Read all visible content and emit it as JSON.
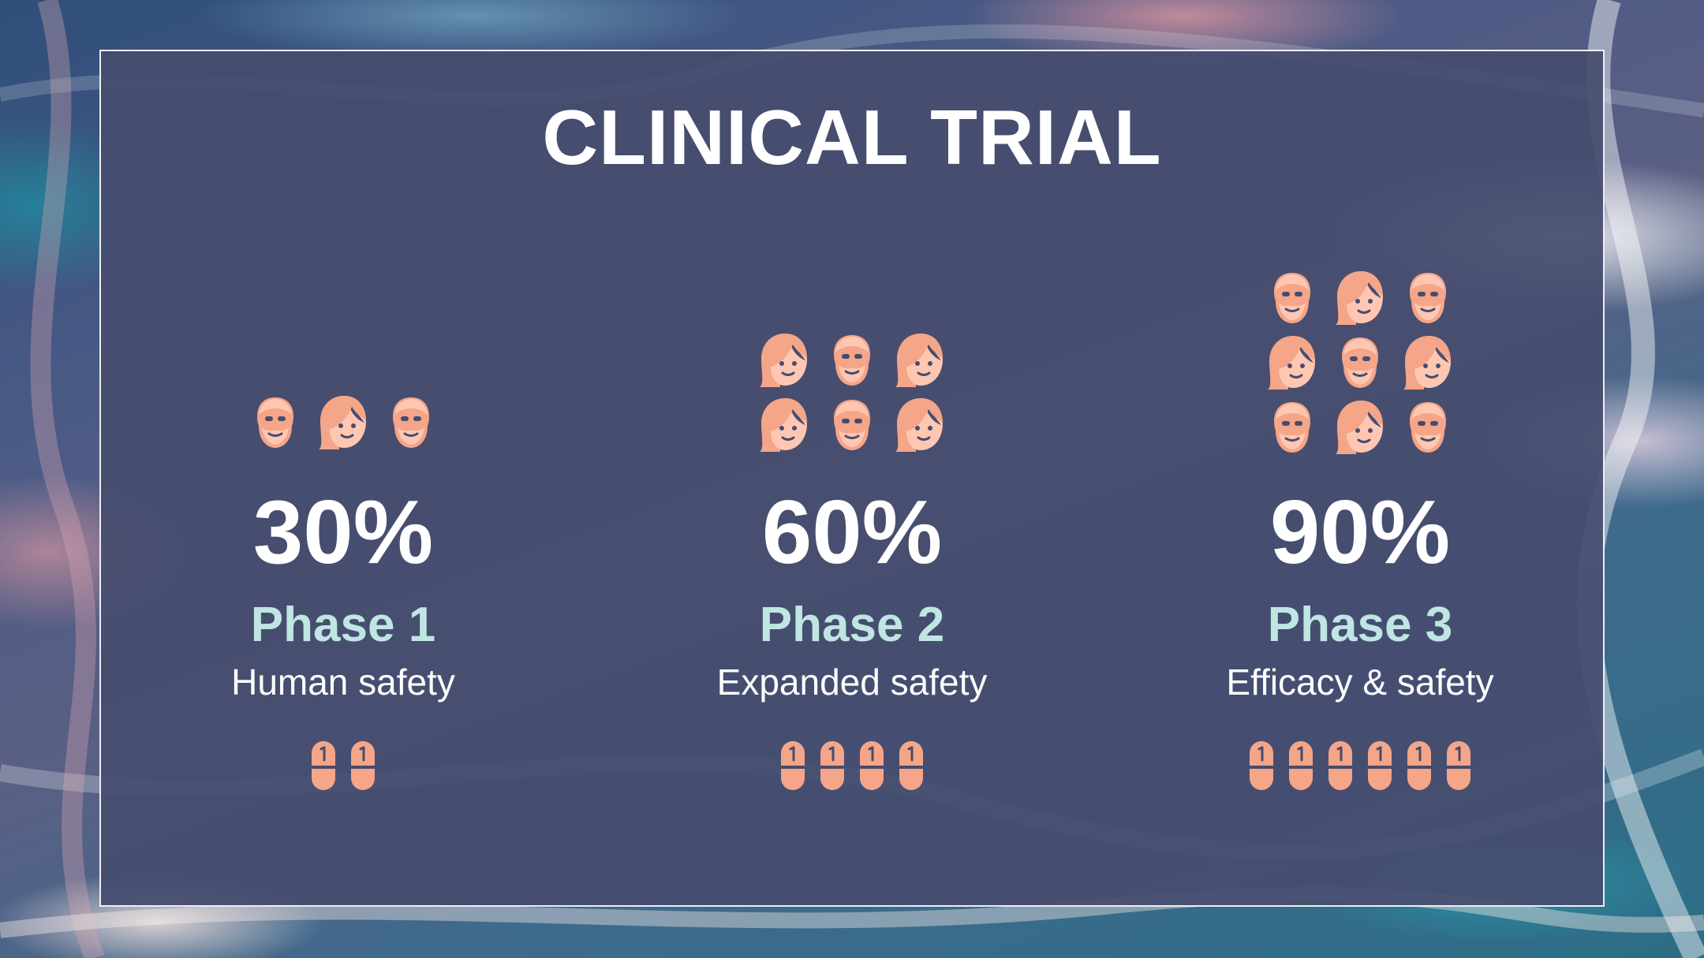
{
  "title": "CLINICAL TRIAL",
  "colors": {
    "panel": "#464c6e",
    "accent_icon": "#f5a588",
    "phase_text": "#bfe6e2",
    "text": "#ffffff"
  },
  "phases": [
    {
      "percent": "30%",
      "phase": "Phase 1",
      "description": "Human safety",
      "people_rows": [
        [
          "man",
          "woman",
          "man"
        ]
      ],
      "pill_count": 2
    },
    {
      "percent": "60%",
      "phase": "Phase 2",
      "description": "Expanded safety",
      "people_rows": [
        [
          "woman",
          "man",
          "woman"
        ],
        [
          "woman",
          "man",
          "woman"
        ]
      ],
      "pill_count": 4
    },
    {
      "percent": "90%",
      "phase": "Phase 3",
      "description": "Efficacy & safety",
      "people_rows": [
        [
          "man",
          "woman",
          "man"
        ],
        [
          "woman",
          "man",
          "woman"
        ],
        [
          "man",
          "woman",
          "man"
        ]
      ],
      "pill_count": 6
    }
  ]
}
